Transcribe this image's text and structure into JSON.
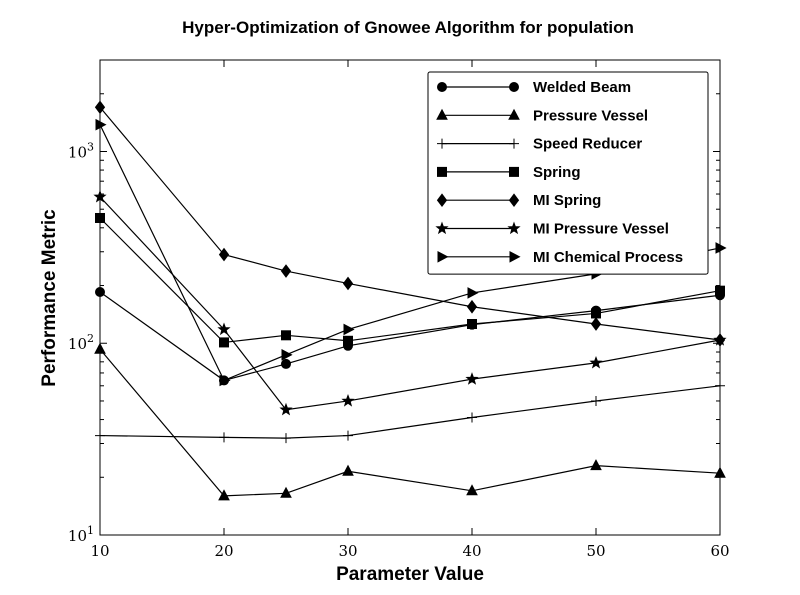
{
  "chart_data": {
    "type": "line",
    "title": "Hyper-Optimization of Gnowee Algorithm for population",
    "xlabel": "Parameter Value",
    "ylabel": "Performance Metric",
    "yscale": "log",
    "xlim": [
      10,
      60
    ],
    "ylim": [
      10,
      3000
    ],
    "x": [
      10,
      20,
      25,
      30,
      40,
      50,
      60
    ],
    "xticks": [
      {
        "value": 10,
        "label": "10"
      },
      {
        "value": 20,
        "label": "20"
      },
      {
        "value": 30,
        "label": "30"
      },
      {
        "value": 40,
        "label": "40"
      },
      {
        "value": 50,
        "label": "50"
      },
      {
        "value": 60,
        "label": "60"
      }
    ],
    "yticks": [
      {
        "value": 10,
        "base": "10",
        "exp": "1"
      },
      {
        "value": 100,
        "base": "10",
        "exp": "2"
      },
      {
        "value": 1000,
        "base": "10",
        "exp": "3"
      }
    ],
    "grid": false,
    "legend_position": "top-right",
    "line_color": "#000000",
    "series": [
      {
        "name": "Welded Beam",
        "marker": "circle",
        "values": [
          185,
          64,
          78,
          97,
          125,
          148,
          178
        ]
      },
      {
        "name": "Pressure Vessel",
        "marker": "triangle-up",
        "values": [
          93,
          16,
          16.5,
          21.5,
          17,
          23,
          21
        ]
      },
      {
        "name": "Speed Reducer",
        "marker": "plus",
        "values": [
          33,
          32.3,
          32,
          33,
          41,
          50,
          60
        ]
      },
      {
        "name": "Spring",
        "marker": "square",
        "values": [
          450,
          101,
          110,
          103,
          126,
          143,
          188
        ]
      },
      {
        "name": "MI Spring",
        "marker": "diamond",
        "values": [
          1700,
          290,
          238,
          205,
          155,
          126,
          104
        ]
      },
      {
        "name": "MI Pressure Vessel",
        "marker": "star",
        "values": [
          580,
          118,
          45,
          50,
          65,
          79,
          104
        ]
      },
      {
        "name": "MI Chemical Process",
        "marker": "triangle-right",
        "values": [
          1380,
          64,
          87,
          118,
          183,
          230,
          314
        ]
      }
    ]
  }
}
